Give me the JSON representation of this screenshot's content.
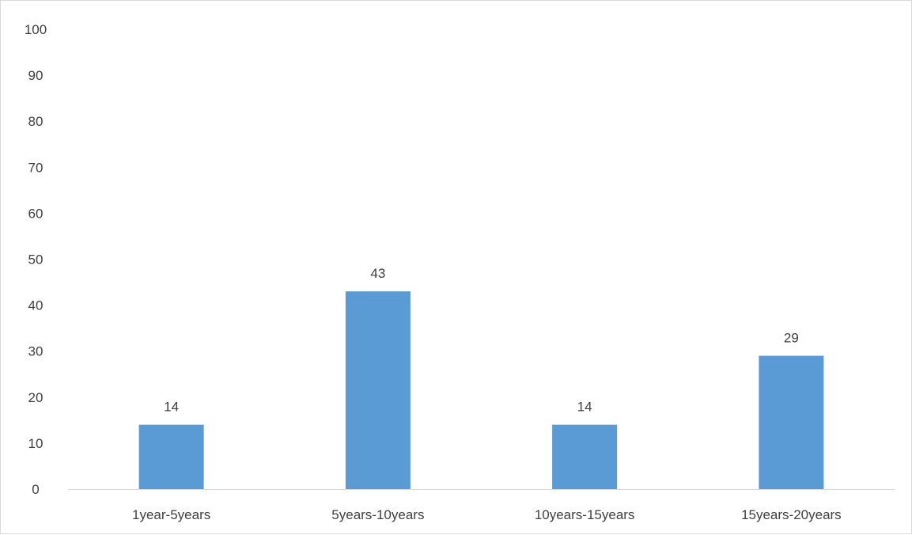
{
  "chart_data": {
    "type": "bar",
    "title": "",
    "xlabel": "",
    "ylabel": "",
    "categories": [
      "1year-5years",
      "5years-10years",
      "10years-15years",
      "15years-20years"
    ],
    "values": [
      14,
      43,
      14,
      29
    ],
    "data_labels": [
      "14",
      "43",
      "14",
      "29"
    ],
    "ylim": [
      0,
      100
    ],
    "yticks": [
      0,
      10,
      20,
      30,
      40,
      50,
      60,
      70,
      80,
      90,
      100
    ],
    "ytick_labels": [
      "0",
      "10",
      "20",
      "30",
      "40",
      "50",
      "60",
      "70",
      "80",
      "90",
      "100"
    ],
    "grid": false,
    "legend": "none",
    "colors": {
      "bar": "#5b9bd5",
      "axis": "#d9d9d9",
      "text": "#3f3f3f"
    }
  }
}
